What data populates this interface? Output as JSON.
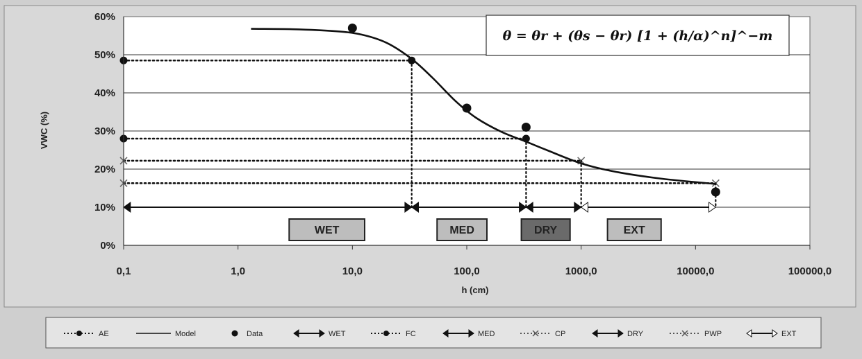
{
  "chart_data": {
    "type": "scatter",
    "title": "",
    "xlabel": "h (cm)",
    "ylabel": "VWC (%)",
    "x_scale": "log",
    "xlim": [
      0.1,
      100000
    ],
    "ylim": [
      0,
      60
    ],
    "x_ticks": [
      0.1,
      1,
      10,
      100,
      1000,
      10000,
      100000
    ],
    "x_tick_labels": [
      "0,1",
      "1,0",
      "10,0",
      "100,0",
      "1000,0",
      "10000,0",
      "100000,0"
    ],
    "y_ticks": [
      0,
      10,
      20,
      30,
      40,
      50,
      60
    ],
    "y_tick_labels": [
      "0%",
      "10%",
      "20%",
      "30%",
      "40%",
      "50%",
      "60%"
    ],
    "grid": "horizontal",
    "legend_position": "bottom",
    "formula": "θ = θr + (θs − θr) [1 + (h/α)^n]^−m",
    "series": [
      {
        "name": "Model",
        "kind": "line",
        "x": [
          1.3,
          3,
          7,
          12,
          20,
          33,
          50,
          80,
          120,
          200,
          330,
          500,
          1000,
          2000,
          5000,
          15000
        ],
        "y": [
          56.8,
          56.7,
          56.2,
          55.3,
          53.1,
          48.9,
          44.0,
          37.8,
          33.5,
          29.8,
          27.2,
          25.0,
          21.5,
          19.3,
          17.5,
          16.1
        ]
      },
      {
        "name": "Data",
        "kind": "points",
        "x": [
          10,
          100,
          330,
          15000
        ],
        "y": [
          57,
          36,
          31,
          14
        ]
      },
      {
        "name": "AE",
        "kind": "dotted-hline-marker",
        "x": [
          0.1,
          33
        ],
        "y": [
          48.5,
          48.5
        ]
      },
      {
        "name": "FC",
        "kind": "dotted-hline-marker",
        "x": [
          0.1,
          330
        ],
        "y": [
          28,
          28
        ]
      },
      {
        "name": "CP",
        "kind": "dotted-hline-marker",
        "x": [
          0.1,
          1000
        ],
        "y": [
          22.2,
          22.2
        ]
      },
      {
        "name": "PWP",
        "kind": "dotted-hline-marker",
        "x": [
          0.1,
          15000
        ],
        "y": [
          16.3,
          16.3
        ]
      }
    ],
    "drops": [
      {
        "x": 33,
        "y_top": 48.5
      },
      {
        "x": 330,
        "y_top": 28
      },
      {
        "x": 1000,
        "y_top": 22.2
      },
      {
        "x": 15000,
        "y_top": 16.3
      }
    ],
    "zones": [
      {
        "name": "WET",
        "x_from": 0.1,
        "x_to": 33,
        "y": 10,
        "label": "WET",
        "label_x": [
          2.8,
          12.8
        ]
      },
      {
        "name": "MED",
        "x_from": 33,
        "x_to": 330,
        "y": 10,
        "label": "MED",
        "label_x": [
          55,
          150
        ]
      },
      {
        "name": "DRY",
        "x_from": 330,
        "x_to": 1000,
        "y": 10,
        "label": "DRY",
        "label_x": [
          300,
          800
        ]
      },
      {
        "name": "EXT",
        "x_from": 1000,
        "x_to": 15000,
        "y": 10,
        "label": "EXT",
        "label_x": [
          1700,
          5000
        ]
      }
    ]
  },
  "legend": {
    "items": [
      {
        "key": "ae",
        "label": "AE",
        "style": "dotted-dot"
      },
      {
        "key": "model",
        "label": "Model",
        "style": "solid"
      },
      {
        "key": "data",
        "label": "Data",
        "style": "dot"
      },
      {
        "key": "wet",
        "label": "WET",
        "style": "double-arrow"
      },
      {
        "key": "fc",
        "label": "FC",
        "style": "dotted-dot"
      },
      {
        "key": "med",
        "label": "MED",
        "style": "double-arrow"
      },
      {
        "key": "cp",
        "label": "CP",
        "style": "dotted-cross"
      },
      {
        "key": "dry",
        "label": "DRY",
        "style": "double-arrow"
      },
      {
        "key": "pwp",
        "label": "PWP",
        "style": "dotted-cross"
      },
      {
        "key": "ext",
        "label": "EXT",
        "style": "hollow-arrow"
      }
    ]
  },
  "colors": {
    "background": "#cfcfcf",
    "plot_area": "#ffffff",
    "ink": "#111111",
    "zone_box_light": "#bdbdbd",
    "zone_box_dark": "#6a6a6a"
  }
}
